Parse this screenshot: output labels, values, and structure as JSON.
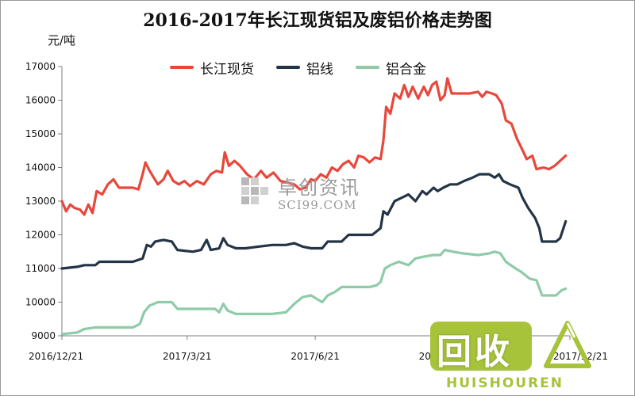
{
  "colors": {
    "series_changjiang": "#e8473b",
    "series_aluminum_wire": "#243447",
    "series_aluminum_alloy": "#8ecba8",
    "axis": "#7f7f7f",
    "watermark": "#9a9a9a",
    "brand": "#a7c33a"
  },
  "watermark": {
    "cn": "卓创资讯",
    "en": "SCI99.COM"
  },
  "brand_logo": {
    "cn": "回收",
    "en": "HUISHOUREN"
  },
  "chart_data": {
    "type": "line",
    "title": "2016-2017年长江现货铝及废铝价格走势图",
    "ylabel": "元/吨",
    "xlabel": "",
    "ylim": [
      9000,
      17000
    ],
    "yticks": [
      9000,
      10000,
      11000,
      12000,
      13000,
      14000,
      15000,
      16000,
      17000
    ],
    "xlim": [
      "2016-12-21",
      "2017-12-21"
    ],
    "xticks": [
      "2016/12/21",
      "2017/3/21",
      "2017/6/21",
      "2017/9/21",
      "2017/12/21"
    ],
    "grid": false,
    "legend_position": "top",
    "series": [
      {
        "name": "长江现货",
        "points": [
          [
            "2016-12-21",
            13000
          ],
          [
            "2016-12-24",
            12700
          ],
          [
            "2016-12-27",
            12900
          ],
          [
            "2016-12-30",
            12800
          ],
          [
            "2017-01-03",
            12750
          ],
          [
            "2017-01-06",
            12600
          ],
          [
            "2017-01-09",
            12900
          ],
          [
            "2017-01-12",
            12650
          ],
          [
            "2017-01-15",
            13300
          ],
          [
            "2017-01-19",
            13200
          ],
          [
            "2017-01-23",
            13500
          ],
          [
            "2017-01-27",
            13650
          ],
          [
            "2017-01-31",
            13400
          ],
          [
            "2017-02-04",
            13400
          ],
          [
            "2017-02-10",
            13400
          ],
          [
            "2017-02-14",
            13350
          ],
          [
            "2017-02-17",
            13800
          ],
          [
            "2017-02-19",
            14150
          ],
          [
            "2017-02-22",
            13900
          ],
          [
            "2017-02-25",
            13700
          ],
          [
            "2017-02-28",
            13500
          ],
          [
            "2017-03-04",
            13650
          ],
          [
            "2017-03-07",
            13900
          ],
          [
            "2017-03-11",
            13600
          ],
          [
            "2017-03-15",
            13500
          ],
          [
            "2017-03-19",
            13600
          ],
          [
            "2017-03-23",
            13450
          ],
          [
            "2017-03-28",
            13600
          ],
          [
            "2017-04-02",
            13500
          ],
          [
            "2017-04-07",
            13800
          ],
          [
            "2017-04-11",
            13900
          ],
          [
            "2017-04-15",
            13850
          ],
          [
            "2017-04-17",
            14450
          ],
          [
            "2017-04-20",
            14050
          ],
          [
            "2017-04-24",
            14200
          ],
          [
            "2017-04-28",
            14050
          ],
          [
            "2017-05-03",
            13800
          ],
          [
            "2017-05-08",
            13650
          ],
          [
            "2017-05-13",
            13900
          ],
          [
            "2017-05-17",
            13700
          ],
          [
            "2017-05-22",
            13850
          ],
          [
            "2017-05-27",
            13600
          ],
          [
            "2017-06-01",
            13550
          ],
          [
            "2017-06-06",
            13500
          ],
          [
            "2017-06-10",
            13350
          ],
          [
            "2017-06-14",
            13400
          ],
          [
            "2017-06-18",
            13650
          ],
          [
            "2017-06-21",
            13600
          ],
          [
            "2017-06-25",
            13800
          ],
          [
            "2017-06-29",
            13700
          ],
          [
            "2017-07-03",
            14000
          ],
          [
            "2017-07-07",
            13900
          ],
          [
            "2017-07-11",
            14100
          ],
          [
            "2017-07-15",
            14200
          ],
          [
            "2017-07-19",
            14000
          ],
          [
            "2017-07-22",
            14350
          ],
          [
            "2017-07-26",
            14300
          ],
          [
            "2017-07-30",
            14150
          ],
          [
            "2017-08-03",
            14300
          ],
          [
            "2017-08-07",
            14250
          ],
          [
            "2017-08-09",
            14800
          ],
          [
            "2017-08-11",
            15800
          ],
          [
            "2017-08-14",
            15600
          ],
          [
            "2017-08-17",
            16200
          ],
          [
            "2017-08-21",
            16050
          ],
          [
            "2017-08-24",
            16450
          ],
          [
            "2017-08-27",
            16100
          ],
          [
            "2017-08-30",
            16400
          ],
          [
            "2017-09-03",
            16050
          ],
          [
            "2017-09-07",
            16400
          ],
          [
            "2017-09-10",
            16150
          ],
          [
            "2017-09-13",
            16450
          ],
          [
            "2017-09-16",
            16550
          ],
          [
            "2017-09-19",
            16000
          ],
          [
            "2017-09-22",
            16150
          ],
          [
            "2017-09-24",
            16650
          ],
          [
            "2017-09-27",
            16200
          ],
          [
            "2017-10-03",
            16200
          ],
          [
            "2017-10-10",
            16200
          ],
          [
            "2017-10-16",
            16250
          ],
          [
            "2017-10-19",
            16100
          ],
          [
            "2017-10-22",
            16250
          ],
          [
            "2017-10-26",
            16200
          ],
          [
            "2017-10-29",
            16150
          ],
          [
            "2017-11-02",
            15900
          ],
          [
            "2017-11-05",
            15400
          ],
          [
            "2017-11-09",
            15300
          ],
          [
            "2017-11-13",
            14850
          ],
          [
            "2017-11-16",
            14600
          ],
          [
            "2017-11-20",
            14250
          ],
          [
            "2017-11-24",
            14350
          ],
          [
            "2017-11-27",
            13950
          ],
          [
            "2017-12-02",
            14000
          ],
          [
            "2017-12-06",
            13950
          ],
          [
            "2017-12-10",
            14050
          ],
          [
            "2017-12-14",
            14200
          ],
          [
            "2017-12-18",
            14350
          ]
        ]
      },
      {
        "name": "铝线",
        "points": [
          [
            "2016-12-21",
            11000
          ],
          [
            "2017-01-01",
            11050
          ],
          [
            "2017-01-06",
            11100
          ],
          [
            "2017-01-14",
            11100
          ],
          [
            "2017-01-17",
            11200
          ],
          [
            "2017-01-28",
            11200
          ],
          [
            "2017-02-10",
            11200
          ],
          [
            "2017-02-17",
            11300
          ],
          [
            "2017-02-20",
            11700
          ],
          [
            "2017-02-23",
            11650
          ],
          [
            "2017-02-26",
            11800
          ],
          [
            "2017-03-04",
            11850
          ],
          [
            "2017-03-10",
            11800
          ],
          [
            "2017-03-14",
            11550
          ],
          [
            "2017-03-25",
            11500
          ],
          [
            "2017-03-31",
            11550
          ],
          [
            "2017-04-04",
            11850
          ],
          [
            "2017-04-07",
            11550
          ],
          [
            "2017-04-13",
            11600
          ],
          [
            "2017-04-16",
            11900
          ],
          [
            "2017-04-19",
            11700
          ],
          [
            "2017-04-25",
            11600
          ],
          [
            "2017-05-02",
            11600
          ],
          [
            "2017-05-11",
            11650
          ],
          [
            "2017-05-21",
            11700
          ],
          [
            "2017-05-31",
            11700
          ],
          [
            "2017-06-06",
            11750
          ],
          [
            "2017-06-12",
            11650
          ],
          [
            "2017-06-18",
            11600
          ],
          [
            "2017-06-26",
            11600
          ],
          [
            "2017-06-30",
            11800
          ],
          [
            "2017-07-05",
            11800
          ],
          [
            "2017-07-10",
            11800
          ],
          [
            "2017-07-15",
            12000
          ],
          [
            "2017-07-25",
            12000
          ],
          [
            "2017-08-01",
            12000
          ],
          [
            "2017-08-04",
            12100
          ],
          [
            "2017-08-07",
            12200
          ],
          [
            "2017-08-09",
            12700
          ],
          [
            "2017-08-12",
            12600
          ],
          [
            "2017-08-17",
            13000
          ],
          [
            "2017-08-22",
            13100
          ],
          [
            "2017-08-27",
            13200
          ],
          [
            "2017-09-01",
            13000
          ],
          [
            "2017-09-06",
            13300
          ],
          [
            "2017-09-09",
            13200
          ],
          [
            "2017-09-14",
            13400
          ],
          [
            "2017-09-17",
            13300
          ],
          [
            "2017-09-21",
            13400
          ],
          [
            "2017-09-26",
            13500
          ],
          [
            "2017-10-01",
            13500
          ],
          [
            "2017-10-06",
            13600
          ],
          [
            "2017-10-12",
            13700
          ],
          [
            "2017-10-17",
            13800
          ],
          [
            "2017-10-24",
            13800
          ],
          [
            "2017-10-28",
            13700
          ],
          [
            "2017-10-31",
            13800
          ],
          [
            "2017-11-03",
            13600
          ],
          [
            "2017-11-08",
            13500
          ],
          [
            "2017-11-14",
            13400
          ],
          [
            "2017-11-17",
            13100
          ],
          [
            "2017-11-21",
            12800
          ],
          [
            "2017-11-26",
            12500
          ],
          [
            "2017-11-29",
            12200
          ],
          [
            "2017-12-01",
            11800
          ],
          [
            "2017-12-11",
            11800
          ],
          [
            "2017-12-14",
            11900
          ],
          [
            "2017-12-18",
            12400
          ]
        ]
      },
      {
        "name": "铝合金",
        "points": [
          [
            "2016-12-21",
            9050
          ],
          [
            "2017-01-01",
            9100
          ],
          [
            "2017-01-06",
            9200
          ],
          [
            "2017-01-14",
            9250
          ],
          [
            "2017-01-28",
            9250
          ],
          [
            "2017-02-10",
            9250
          ],
          [
            "2017-02-15",
            9350
          ],
          [
            "2017-02-18",
            9700
          ],
          [
            "2017-02-22",
            9900
          ],
          [
            "2017-02-28",
            10000
          ],
          [
            "2017-03-10",
            10000
          ],
          [
            "2017-03-14",
            9800
          ],
          [
            "2017-03-31",
            9800
          ],
          [
            "2017-04-10",
            9800
          ],
          [
            "2017-04-13",
            9700
          ],
          [
            "2017-04-16",
            9950
          ],
          [
            "2017-04-19",
            9750
          ],
          [
            "2017-04-25",
            9650
          ],
          [
            "2017-05-02",
            9650
          ],
          [
            "2017-05-21",
            9650
          ],
          [
            "2017-05-31",
            9700
          ],
          [
            "2017-06-06",
            9950
          ],
          [
            "2017-06-12",
            10150
          ],
          [
            "2017-06-18",
            10200
          ],
          [
            "2017-06-26",
            10000
          ],
          [
            "2017-06-30",
            10200
          ],
          [
            "2017-07-05",
            10300
          ],
          [
            "2017-07-10",
            10450
          ],
          [
            "2017-07-20",
            10450
          ],
          [
            "2017-07-30",
            10450
          ],
          [
            "2017-08-04",
            10500
          ],
          [
            "2017-08-07",
            10600
          ],
          [
            "2017-08-10",
            11000
          ],
          [
            "2017-08-14",
            11100
          ],
          [
            "2017-08-20",
            11200
          ],
          [
            "2017-08-27",
            11100
          ],
          [
            "2017-09-01",
            11300
          ],
          [
            "2017-09-07",
            11350
          ],
          [
            "2017-09-14",
            11400
          ],
          [
            "2017-09-19",
            11400
          ],
          [
            "2017-09-22",
            11550
          ],
          [
            "2017-09-28",
            11500
          ],
          [
            "2017-10-05",
            11450
          ],
          [
            "2017-10-16",
            11400
          ],
          [
            "2017-10-24",
            11450
          ],
          [
            "2017-10-28",
            11500
          ],
          [
            "2017-11-01",
            11450
          ],
          [
            "2017-11-05",
            11200
          ],
          [
            "2017-11-12",
            11000
          ],
          [
            "2017-11-16",
            10900
          ],
          [
            "2017-11-22",
            10700
          ],
          [
            "2017-11-27",
            10650
          ],
          [
            "2017-12-01",
            10200
          ],
          [
            "2017-12-11",
            10200
          ],
          [
            "2017-12-15",
            10350
          ],
          [
            "2017-12-18",
            10400
          ]
        ]
      }
    ]
  }
}
